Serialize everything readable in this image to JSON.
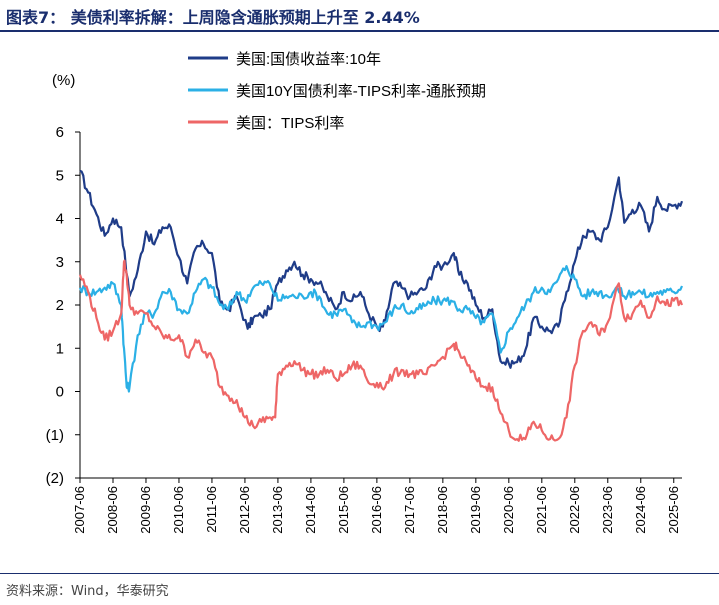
{
  "title": "图表7：  美债利率拆解：上周隐含通胀预期上升至 2.44%",
  "source": "资料来源：Wind，华泰研究",
  "chart_data": {
    "type": "line",
    "unit_label": "(%)",
    "ylim": [
      -2,
      6
    ],
    "y_ticks": [
      {
        "value": 6,
        "label": "6"
      },
      {
        "value": 5,
        "label": "5"
      },
      {
        "value": 4,
        "label": "4"
      },
      {
        "value": 3,
        "label": "3"
      },
      {
        "value": 2,
        "label": "2"
      },
      {
        "value": 1,
        "label": "1"
      },
      {
        "value": 0,
        "label": "0"
      },
      {
        "value": -1,
        "label": "(1)"
      },
      {
        "value": -2,
        "label": "(2)"
      }
    ],
    "x_ticks": [
      "2007-06",
      "2008-06",
      "2009-06",
      "2010-06",
      "2011-06",
      "2012-06",
      "2013-06",
      "2014-06",
      "2015-06",
      "2016-06",
      "2017-06",
      "2018-06",
      "2019-06",
      "2020-06",
      "2021-06",
      "2022-06",
      "2023-06",
      "2024-06",
      "2025-06"
    ],
    "x_range": [
      "2007-06",
      "2025-09"
    ],
    "legend_position": "top",
    "series": [
      {
        "name": "美国:国债收益率:10年",
        "color": "#1f3c88",
        "x": [
          "2007-06",
          "2007-09",
          "2007-12",
          "2008-03",
          "2008-06",
          "2008-09",
          "2008-12",
          "2009-03",
          "2009-06",
          "2009-09",
          "2009-12",
          "2010-03",
          "2010-06",
          "2010-09",
          "2010-12",
          "2011-03",
          "2011-06",
          "2011-09",
          "2011-12",
          "2012-03",
          "2012-07",
          "2012-09",
          "2012-12",
          "2013-03",
          "2013-06",
          "2013-09",
          "2013-12",
          "2014-03",
          "2014-06",
          "2014-09",
          "2014-12",
          "2015-03",
          "2015-06",
          "2015-09",
          "2015-12",
          "2016-03",
          "2016-07",
          "2016-09",
          "2016-12",
          "2017-03",
          "2017-06",
          "2017-09",
          "2017-12",
          "2018-03",
          "2018-06",
          "2018-10",
          "2018-12",
          "2019-03",
          "2019-06",
          "2019-09",
          "2019-12",
          "2020-03",
          "2020-06",
          "2020-09",
          "2020-12",
          "2021-03",
          "2021-06",
          "2021-09",
          "2021-12",
          "2022-03",
          "2022-06",
          "2022-09",
          "2022-12",
          "2023-03",
          "2023-06",
          "2023-10",
          "2023-12",
          "2024-03",
          "2024-06",
          "2024-09",
          "2024-12",
          "2025-03",
          "2025-06",
          "2025-09"
        ],
        "values": [
          5.1,
          4.6,
          4.1,
          3.6,
          4.0,
          3.8,
          2.2,
          2.8,
          3.7,
          3.4,
          3.8,
          3.8,
          3.1,
          2.5,
          3.3,
          3.4,
          3.2,
          2.0,
          1.9,
          2.2,
          1.45,
          1.7,
          1.75,
          1.9,
          2.5,
          2.8,
          3.0,
          2.7,
          2.6,
          2.5,
          2.2,
          1.9,
          2.3,
          2.1,
          2.3,
          1.8,
          1.4,
          1.6,
          2.5,
          2.4,
          2.2,
          2.3,
          2.4,
          2.9,
          2.9,
          3.2,
          2.7,
          2.5,
          2.0,
          1.7,
          1.9,
          0.7,
          0.65,
          0.68,
          0.95,
          1.7,
          1.5,
          1.4,
          1.5,
          2.3,
          3.0,
          3.6,
          3.7,
          3.5,
          3.8,
          4.95,
          3.9,
          4.2,
          4.3,
          3.7,
          4.5,
          4.2,
          4.3,
          4.4
        ]
      },
      {
        "name": "美国10Y国债利率-TIPS利率-通胀预期",
        "color": "#2bb0e6",
        "x": [
          "2007-06",
          "2007-09",
          "2007-12",
          "2008-03",
          "2008-06",
          "2008-09",
          "2008-10",
          "2008-11",
          "2008-12",
          "2009-03",
          "2009-06",
          "2009-09",
          "2009-12",
          "2010-03",
          "2010-06",
          "2010-09",
          "2010-12",
          "2011-03",
          "2011-06",
          "2011-09",
          "2011-12",
          "2012-03",
          "2012-06",
          "2012-09",
          "2012-12",
          "2013-03",
          "2013-06",
          "2013-09",
          "2013-12",
          "2014-03",
          "2014-06",
          "2014-09",
          "2014-12",
          "2015-03",
          "2015-06",
          "2015-09",
          "2015-12",
          "2016-03",
          "2016-06",
          "2016-09",
          "2016-12",
          "2017-03",
          "2017-06",
          "2017-09",
          "2017-12",
          "2018-03",
          "2018-06",
          "2018-09",
          "2018-12",
          "2019-03",
          "2019-06",
          "2019-09",
          "2019-12",
          "2020-03",
          "2020-06",
          "2020-09",
          "2020-12",
          "2021-03",
          "2021-06",
          "2021-09",
          "2021-12",
          "2022-03",
          "2022-06",
          "2022-09",
          "2022-12",
          "2023-03",
          "2023-06",
          "2023-09",
          "2023-12",
          "2024-03",
          "2024-06",
          "2024-09",
          "2024-12",
          "2025-03",
          "2025-06",
          "2025-09"
        ],
        "values": [
          2.4,
          2.3,
          2.3,
          2.4,
          2.5,
          2.0,
          1.0,
          0.1,
          0.1,
          1.3,
          1.8,
          1.8,
          2.3,
          2.3,
          1.9,
          1.8,
          2.3,
          2.6,
          2.4,
          2.0,
          1.9,
          2.3,
          2.1,
          2.4,
          2.5,
          2.5,
          2.1,
          2.2,
          2.2,
          2.2,
          2.3,
          2.2,
          1.8,
          1.8,
          1.9,
          1.6,
          1.5,
          1.6,
          1.5,
          1.6,
          1.9,
          2.0,
          1.8,
          1.9,
          2.0,
          2.1,
          2.1,
          2.1,
          1.9,
          1.9,
          1.7,
          1.6,
          1.8,
          0.9,
          1.4,
          1.7,
          2.0,
          2.3,
          2.4,
          2.3,
          2.6,
          2.9,
          2.6,
          2.2,
          2.3,
          2.3,
          2.2,
          2.4,
          2.2,
          2.3,
          2.3,
          2.2,
          2.3,
          2.3,
          2.3,
          2.44
        ]
      },
      {
        "name": "美国：TIPS利率",
        "color": "#ee6666",
        "x": [
          "2007-06",
          "2007-09",
          "2007-12",
          "2008-03",
          "2008-06",
          "2008-09",
          "2008-10",
          "2008-11",
          "2008-12",
          "2009-03",
          "2009-06",
          "2009-09",
          "2009-12",
          "2010-03",
          "2010-06",
          "2010-09",
          "2010-12",
          "2011-03",
          "2011-06",
          "2011-09",
          "2011-12",
          "2012-03",
          "2012-06",
          "2012-09",
          "2012-12",
          "2013-03",
          "2013-05",
          "2013-06",
          "2013-09",
          "2013-12",
          "2014-03",
          "2014-06",
          "2014-09",
          "2014-12",
          "2015-03",
          "2015-06",
          "2015-09",
          "2015-12",
          "2016-03",
          "2016-06",
          "2016-09",
          "2016-12",
          "2017-03",
          "2017-06",
          "2017-09",
          "2017-12",
          "2018-03",
          "2018-06",
          "2018-10",
          "2018-12",
          "2019-03",
          "2019-06",
          "2019-09",
          "2019-12",
          "2020-03",
          "2020-06",
          "2020-09",
          "2020-12",
          "2021-03",
          "2021-06",
          "2021-09",
          "2021-12",
          "2022-03",
          "2022-06",
          "2022-09",
          "2022-12",
          "2023-03",
          "2023-06",
          "2023-10",
          "2023-12",
          "2024-03",
          "2024-06",
          "2024-09",
          "2024-12",
          "2025-03",
          "2025-06",
          "2025-09"
        ],
        "values": [
          2.7,
          2.3,
          1.7,
          1.2,
          1.4,
          1.8,
          3.0,
          2.7,
          2.0,
          1.8,
          1.8,
          1.5,
          1.3,
          1.2,
          1.3,
          0.8,
          1.2,
          0.9,
          0.8,
          0.1,
          -0.1,
          -0.2,
          -0.6,
          -0.8,
          -0.7,
          -0.6,
          -0.6,
          0.4,
          0.6,
          0.7,
          0.5,
          0.4,
          0.4,
          0.5,
          0.3,
          0.4,
          0.6,
          0.6,
          0.2,
          0.2,
          0.1,
          0.4,
          0.5,
          0.4,
          0.4,
          0.4,
          0.6,
          0.8,
          1.1,
          0.9,
          0.6,
          0.3,
          0.1,
          0.1,
          -0.5,
          -0.9,
          -1.1,
          -1.1,
          -0.7,
          -0.9,
          -1.1,
          -1.1,
          -0.6,
          0.6,
          1.4,
          1.6,
          1.3,
          1.6,
          2.5,
          1.7,
          1.8,
          2.1,
          1.7,
          2.2,
          2.0,
          2.1,
          2.0
        ]
      }
    ]
  }
}
